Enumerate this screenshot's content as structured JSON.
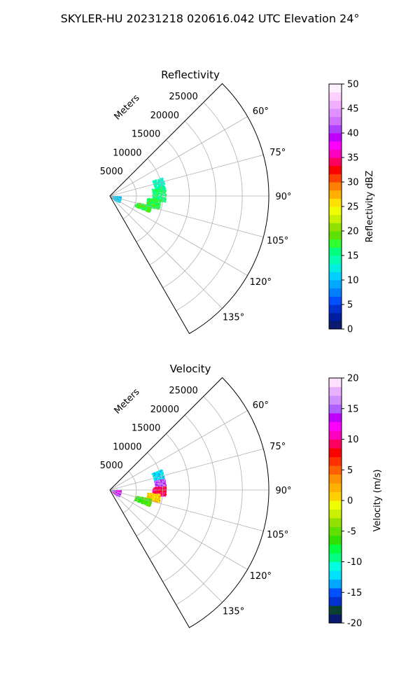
{
  "figure": {
    "suptitle": "SKYLER-HU  20231218  020616.042 UTC Elevation 24°"
  },
  "chart_data": [
    {
      "type": "ppi",
      "title": "Reflectivity",
      "range_label": "Meters",
      "range_ticks": [
        5000,
        10000,
        15000,
        20000,
        25000
      ],
      "range_max": 30000,
      "azimuth_range_deg": [
        45,
        150
      ],
      "azimuth_ticks": [
        60,
        75,
        90,
        105,
        120,
        135
      ],
      "azimuth_tick_labels": [
        "60°",
        "75°",
        "90°",
        "105°",
        "120°",
        "135°"
      ],
      "grid": true,
      "colorbar": {
        "label": "Reflectivity dBZ",
        "min": 0,
        "max": 50,
        "ticks": [
          0,
          5,
          10,
          15,
          20,
          25,
          30,
          35,
          40,
          45,
          50
        ],
        "colors": [
          "#0a1a6e",
          "#001ea0",
          "#0030d0",
          "#0050ff",
          "#0080ff",
          "#00a8ff",
          "#00d0ff",
          "#00f0e0",
          "#00ffb0",
          "#00ff80",
          "#30ff30",
          "#60e000",
          "#90e000",
          "#c8f000",
          "#f0ff00",
          "#ffe000",
          "#ffb000",
          "#ff8000",
          "#ff4000",
          "#ff0000",
          "#ff0060",
          "#ff00c0",
          "#ff00ff",
          "#c000ff",
          "#b040ff",
          "#d070ff",
          "#e090ff",
          "#f0b0ff",
          "#ffd0ff",
          "#fff0ff"
        ]
      },
      "echo_regions": [
        {
          "az": [
            70,
            84
          ],
          "r": [
            8500,
            10500
          ],
          "level": 14
        },
        {
          "az": [
            80,
            96
          ],
          "r": [
            8000,
            10500
          ],
          "level": 16
        },
        {
          "az": [
            93,
            105
          ],
          "r": [
            7000,
            9500
          ],
          "level": 17
        },
        {
          "az": [
            103,
            112
          ],
          "r": [
            5000,
            8000
          ],
          "level": 18
        },
        {
          "az": [
            90,
            125
          ],
          "r": [
            200,
            2000
          ],
          "level": 11
        }
      ]
    },
    {
      "type": "ppi",
      "title": "Velocity",
      "range_label": "Meters",
      "range_ticks": [
        5000,
        10000,
        15000,
        20000,
        25000
      ],
      "range_max": 30000,
      "azimuth_range_deg": [
        45,
        150
      ],
      "azimuth_ticks": [
        60,
        75,
        90,
        105,
        120,
        135
      ],
      "azimuth_tick_labels": [
        "60°",
        "75°",
        "90°",
        "105°",
        "120°",
        "135°"
      ],
      "grid": true,
      "colorbar": {
        "label": "Velocity (m/s)",
        "min": -20,
        "max": 20,
        "ticks": [
          -20,
          -15,
          -10,
          -5,
          0,
          5,
          10,
          15,
          20
        ],
        "colors": [
          "#0a1a6e",
          "#0a4030",
          "#0030d0",
          "#0050ff",
          "#00a8ff",
          "#00e0ff",
          "#00ffe0",
          "#00ff80",
          "#00ff40",
          "#30e000",
          "#60e000",
          "#90e000",
          "#c8f000",
          "#f0ff00",
          "#ffd000",
          "#ffb000",
          "#ff9000",
          "#ff6000",
          "#ff3000",
          "#ff0000",
          "#ff0060",
          "#ff00c0",
          "#ff00ff",
          "#c000ff",
          "#b060ff",
          "#d090ff",
          "#e8b0ff",
          "#ffe0ff"
        ]
      },
      "echo_regions": [
        {
          "az": [
            68,
            80
          ],
          "r": [
            8500,
            10500
          ],
          "velocity": -12
        },
        {
          "az": [
            78,
            88
          ],
          "r": [
            8500,
            10500
          ],
          "velocity": 15
        },
        {
          "az": [
            86,
            96
          ],
          "r": [
            8000,
            10500
          ],
          "velocity": 9
        },
        {
          "az": [
            94,
            104
          ],
          "r": [
            7000,
            9500
          ],
          "velocity": 1
        },
        {
          "az": [
            102,
            112
          ],
          "r": [
            5000,
            8000
          ],
          "velocity": -6
        },
        {
          "az": [
            90,
            125
          ],
          "r": [
            200,
            2000
          ],
          "velocity": 14
        }
      ]
    }
  ]
}
